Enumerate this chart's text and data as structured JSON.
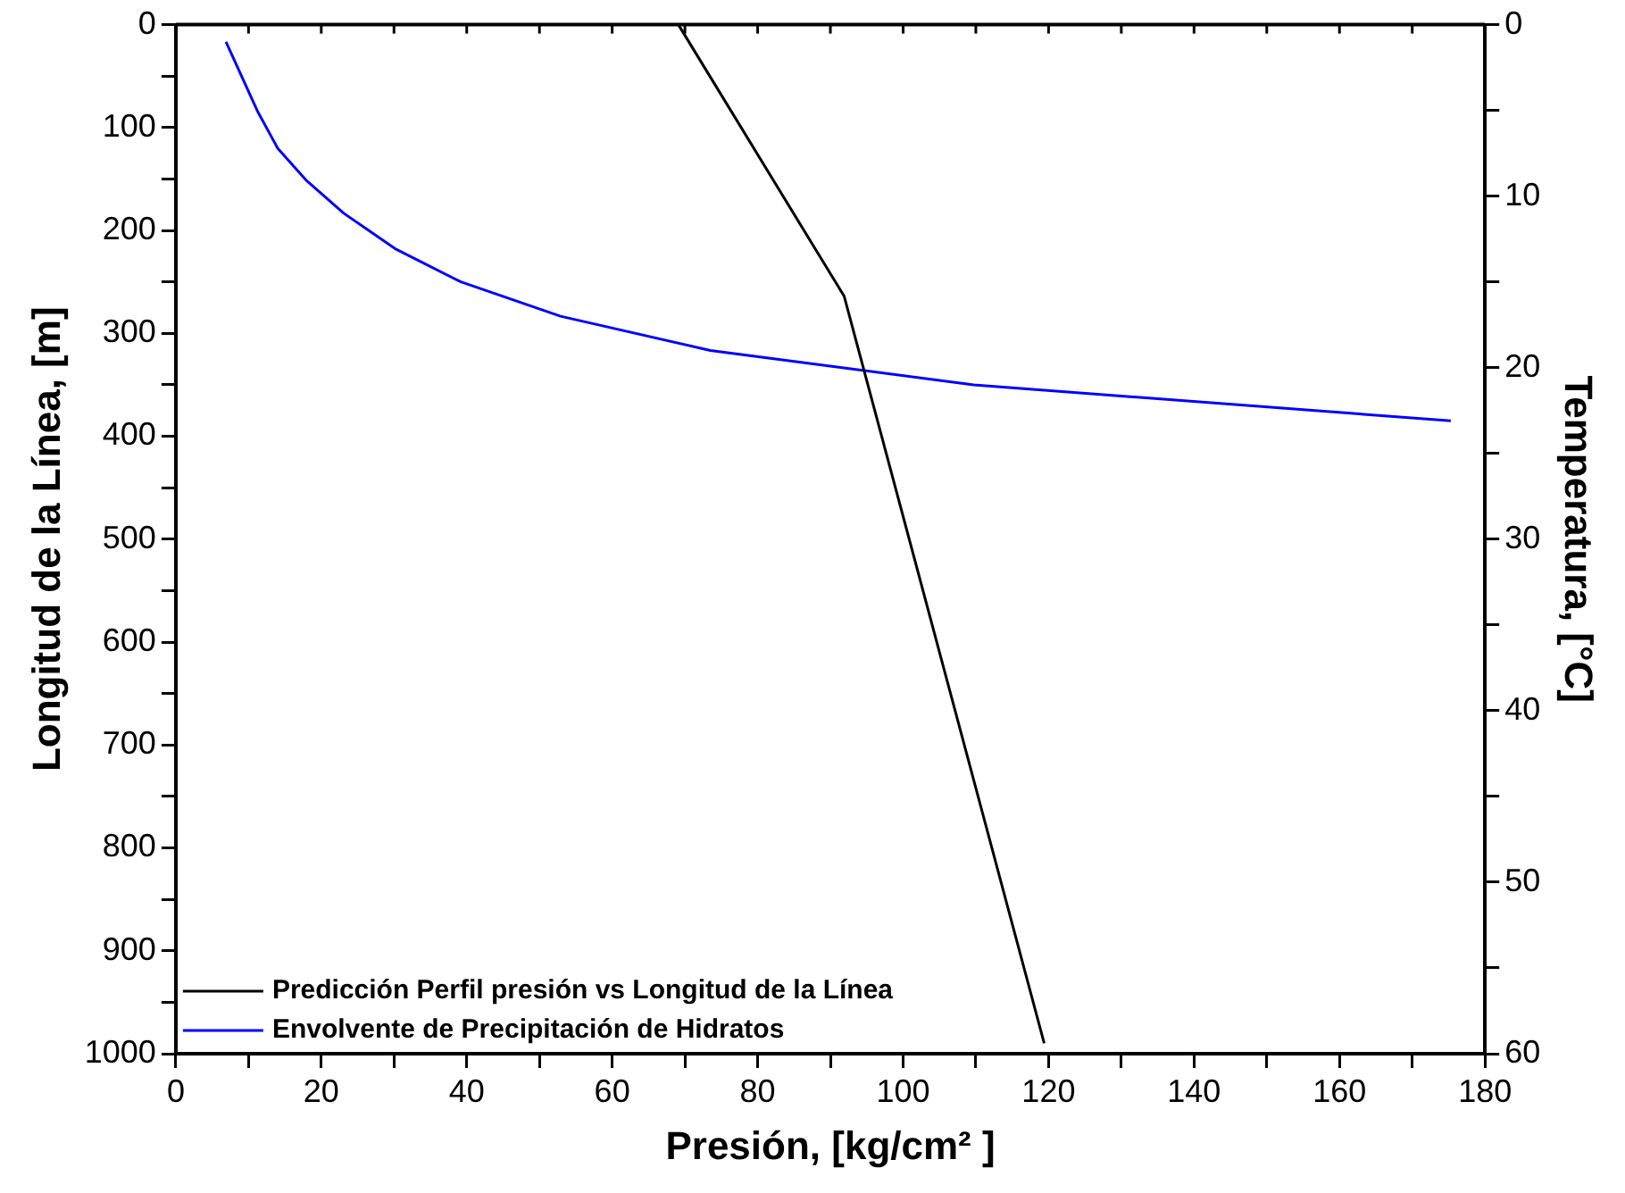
{
  "chart_data": {
    "type": "line",
    "xlabel": "Presión, [kg/cm² ]",
    "ylabel": "Longitud de la Línea, [m]",
    "y2label": "Temperatura, [°C]",
    "xlim": [
      0,
      180
    ],
    "xticks": [
      0,
      {
        "value": 10,
        "label": null
      },
      20,
      {
        "value": 30,
        "label": null
      },
      40,
      {
        "value": 50,
        "label": null
      },
      60,
      {
        "value": 70,
        "label": null
      },
      80,
      {
        "value": 90,
        "label": null
      },
      100,
      {
        "value": 110,
        "label": null
      },
      120,
      {
        "value": 130,
        "label": null
      },
      140,
      {
        "value": 150,
        "label": null
      },
      160,
      {
        "value": 170,
        "label": null
      },
      180
    ],
    "ylim": [
      1000,
      0
    ],
    "yticks": [
      0,
      {
        "value": 50,
        "label": null
      },
      100,
      {
        "value": 150,
        "label": null
      },
      200,
      {
        "value": 250,
        "label": null
      },
      300,
      {
        "value": 350,
        "label": null
      },
      400,
      {
        "value": 450,
        "label": null
      },
      500,
      {
        "value": 550,
        "label": null
      },
      600,
      {
        "value": 650,
        "label": null
      },
      700,
      {
        "value": 750,
        "label": null
      },
      800,
      {
        "value": 850,
        "label": null
      },
      900,
      {
        "value": 950,
        "label": null
      },
      1000
    ],
    "y2lim": [
      60,
      0
    ],
    "y2ticks": [
      0,
      {
        "value": 5,
        "label": null
      },
      10,
      {
        "value": 15,
        "label": null
      },
      20,
      {
        "value": 25,
        "label": null
      },
      30,
      {
        "value": 35,
        "label": null
      },
      40,
      {
        "value": 45,
        "label": null
      },
      50,
      {
        "value": 55,
        "label": null
      },
      60
    ],
    "series": [
      {
        "name": "Predicción Perfil presión vs Longitud de la Línea",
        "color": "#000000",
        "x": [
          69.1,
          91.9,
          119.4
        ],
        "values": [
          0,
          264,
          990
        ]
      },
      {
        "name": "Envolvente de Precipitación de Hidratos",
        "color": "#0000ff",
        "axis": "y2",
        "x": [
          6.9,
          11.3,
          14.0,
          18.0,
          23.1,
          30.3,
          39.2,
          52.9,
          73.5,
          109.7,
          175.3
        ],
        "values": [
          1,
          5.1,
          7.2,
          9.1,
          11,
          13.1,
          15,
          17,
          19,
          21,
          23.1
        ]
      }
    ],
    "grid": false,
    "legend": "bottom left",
    "marker": "none",
    "line_style": "solid"
  }
}
